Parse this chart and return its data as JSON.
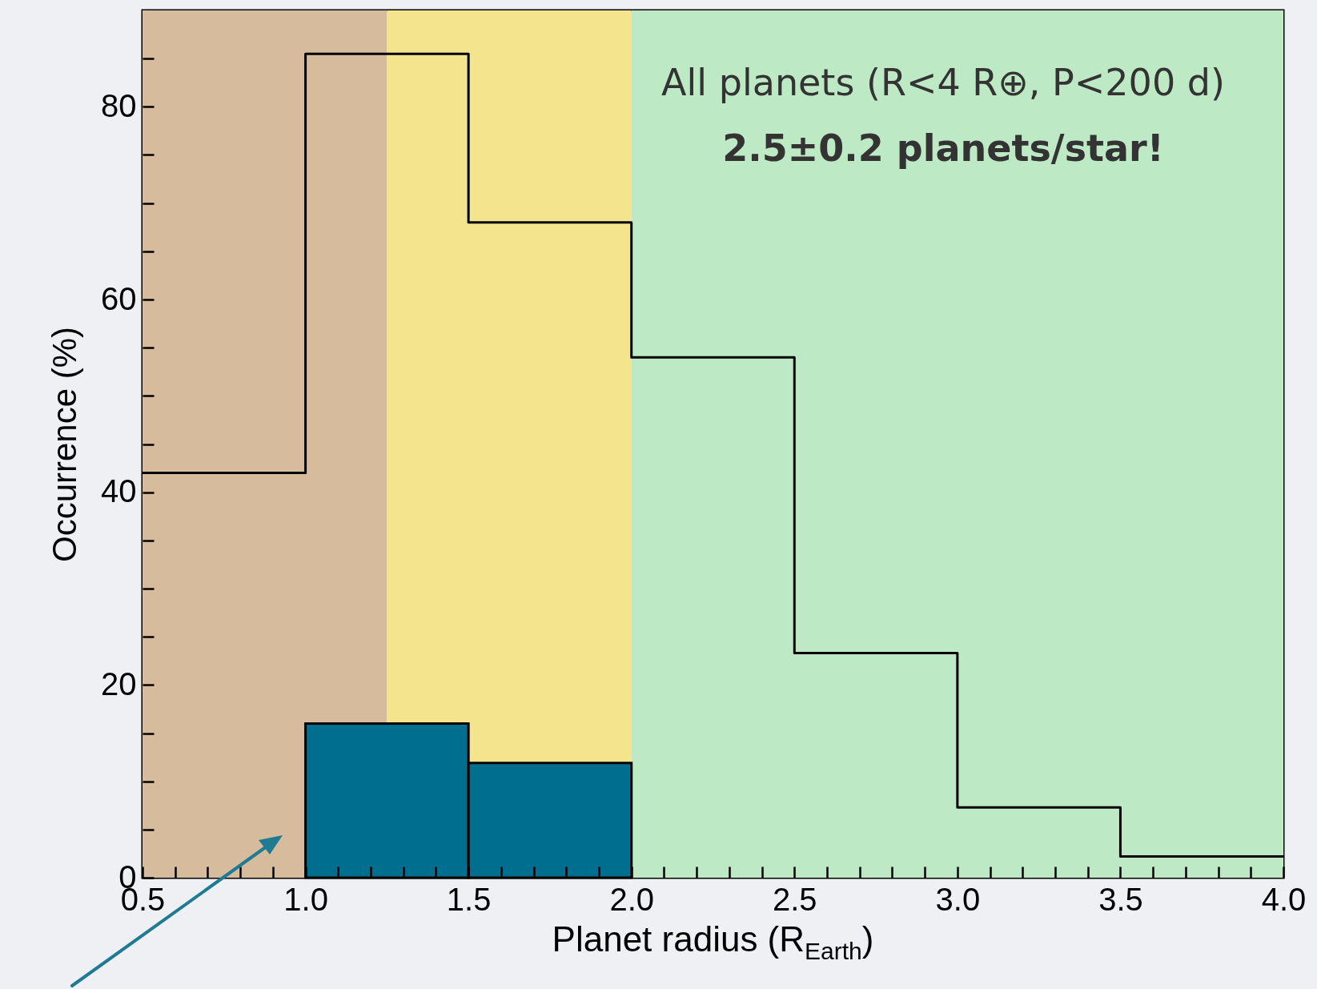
{
  "chart_data": {
    "type": "histogram",
    "xlabel": "Planet radius (R$_{Earth}$)",
    "ylabel": "Occurrence (%)",
    "annotations": [
      "All planets (R<4 R⊕, P<200 d)",
      "2.5±0.2 planets/star!"
    ],
    "bins": [
      0.5,
      1.0,
      1.5,
      2.0,
      2.5,
      3.0,
      3.5,
      4.0
    ],
    "series": [
      {
        "type": "step",
        "color": "#000000",
        "x": [
          0.5,
          1.0,
          1.5,
          2.0,
          2.5,
          3.0,
          3.5,
          4.0
        ],
        "values": [
          42,
          85.5,
          68,
          54,
          23.3,
          7.3,
          2.2,
          2.2
        ]
      },
      {
        "color": "#006e8f",
        "values": [
          null,
          16,
          11.9,
          null,
          null,
          null,
          null
        ]
      }
    ],
    "bands": [
      {
        "axis": "x",
        "from": 0.5,
        "to": 1.25,
        "color": "#d6bc9d"
      },
      {
        "axis": "x",
        "from": 1.25,
        "to": 2.0,
        "color": "#f5e48e"
      },
      {
        "axis": "x",
        "from": 2.0,
        "to": 4.0,
        "color": "#bde9c4"
      }
    ],
    "xlim": [
      0.5,
      4.0
    ],
    "xticks": [
      {
        "value": 0.5,
        "label": "0.5"
      },
      {
        "value": 0.6,
        "label": null
      },
      {
        "value": 0.7,
        "label": null
      },
      {
        "value": 0.8,
        "label": null
      },
      {
        "value": 0.9,
        "label": null
      },
      {
        "value": 1.0,
        "label": "1.0"
      },
      {
        "value": 1.1,
        "label": null
      },
      {
        "value": 1.2,
        "label": null
      },
      {
        "value": 1.3,
        "label": null
      },
      {
        "value": 1.4,
        "label": null
      },
      {
        "value": 1.5,
        "label": "1.5"
      },
      {
        "value": 1.6,
        "label": null
      },
      {
        "value": 1.7,
        "label": null
      },
      {
        "value": 1.8,
        "label": null
      },
      {
        "value": 1.9,
        "label": null
      },
      {
        "value": 2.0,
        "label": "2.0"
      },
      {
        "value": 2.1,
        "label": null
      },
      {
        "value": 2.2,
        "label": null
      },
      {
        "value": 2.3,
        "label": null
      },
      {
        "value": 2.4,
        "label": null
      },
      {
        "value": 2.5,
        "label": "2.5"
      },
      {
        "value": 2.6,
        "label": null
      },
      {
        "value": 2.7,
        "label": null
      },
      {
        "value": 2.8,
        "label": null
      },
      {
        "value": 2.9,
        "label": null
      },
      {
        "value": 3.0,
        "label": "3.0"
      },
      {
        "value": 3.1,
        "label": null
      },
      {
        "value": 3.2,
        "label": null
      },
      {
        "value": 3.3,
        "label": null
      },
      {
        "value": 3.4,
        "label": null
      },
      {
        "value": 3.5,
        "label": "3.5"
      },
      {
        "value": 3.6,
        "label": null
      },
      {
        "value": 3.7,
        "label": null
      },
      {
        "value": 3.8,
        "label": null
      },
      {
        "value": 3.9,
        "label": null
      },
      {
        "value": 4.0,
        "label": "4.0"
      }
    ],
    "ylim": [
      0,
      90
    ],
    "yticks": [
      0,
      {
        "value": 5,
        "label": null
      },
      {
        "value": 10,
        "label": null
      },
      {
        "value": 15,
        "label": null
      },
      20,
      {
        "value": 25,
        "label": null
      },
      {
        "value": 30,
        "label": null
      },
      {
        "value": 35,
        "label": null
      },
      40,
      {
        "value": 45,
        "label": null
      },
      {
        "value": 50,
        "label": null
      },
      {
        "value": 55,
        "label": null
      },
      60,
      {
        "value": 65,
        "label": null
      },
      {
        "value": 70,
        "label": null
      },
      {
        "value": 75,
        "label": null
      },
      80,
      {
        "value": 85,
        "label": null
      }
    ],
    "grid": false
  }
}
